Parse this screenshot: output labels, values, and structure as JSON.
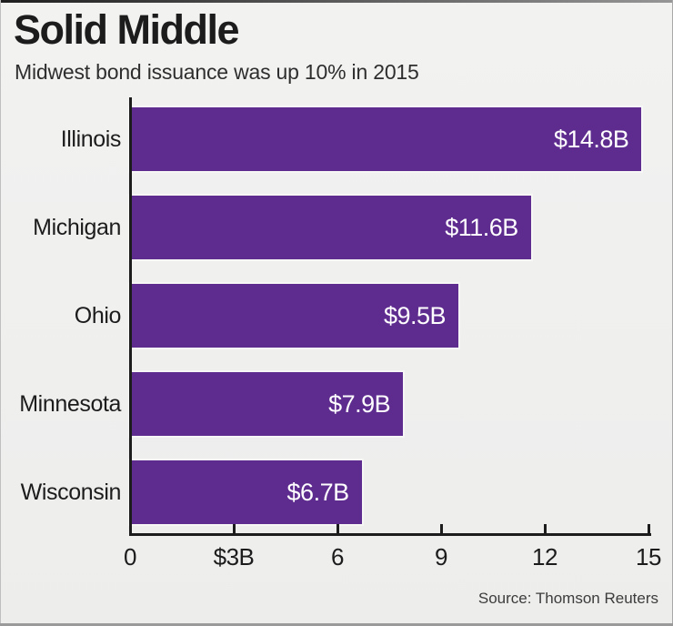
{
  "title": "Solid Middle",
  "subtitle": "Midwest bond issuance was up 10% in 2015",
  "source": "Source: Thomson Reuters",
  "colors": {
    "bar": "#5e2c8f",
    "axis": "#1c1c1c",
    "background": "#f0f0ef",
    "value_label": "#ffffff"
  },
  "chart_data": {
    "type": "bar",
    "orientation": "horizontal",
    "title": "Solid Middle",
    "subtitle": "Midwest bond issuance was up 10% in 2015",
    "categories": [
      "Illinois",
      "Michigan",
      "Ohio",
      "Minnesota",
      "Wisconsin"
    ],
    "values": [
      14.8,
      11.6,
      9.5,
      7.9,
      6.7
    ],
    "value_labels": [
      "$14.8B",
      "$11.6B",
      "$9.5B",
      "$7.9B",
      "$6.7B"
    ],
    "unit": "billions USD",
    "xlabel": "",
    "ylabel": "",
    "xlim": [
      0,
      15
    ],
    "x_axis": {
      "ticks": [
        0,
        3,
        6,
        9,
        12,
        15
      ],
      "tick_labels": [
        "0",
        "$3B",
        "6",
        "9",
        "12",
        "15"
      ]
    },
    "grid": false,
    "legend": false,
    "source": "Source: Thomson Reuters"
  }
}
